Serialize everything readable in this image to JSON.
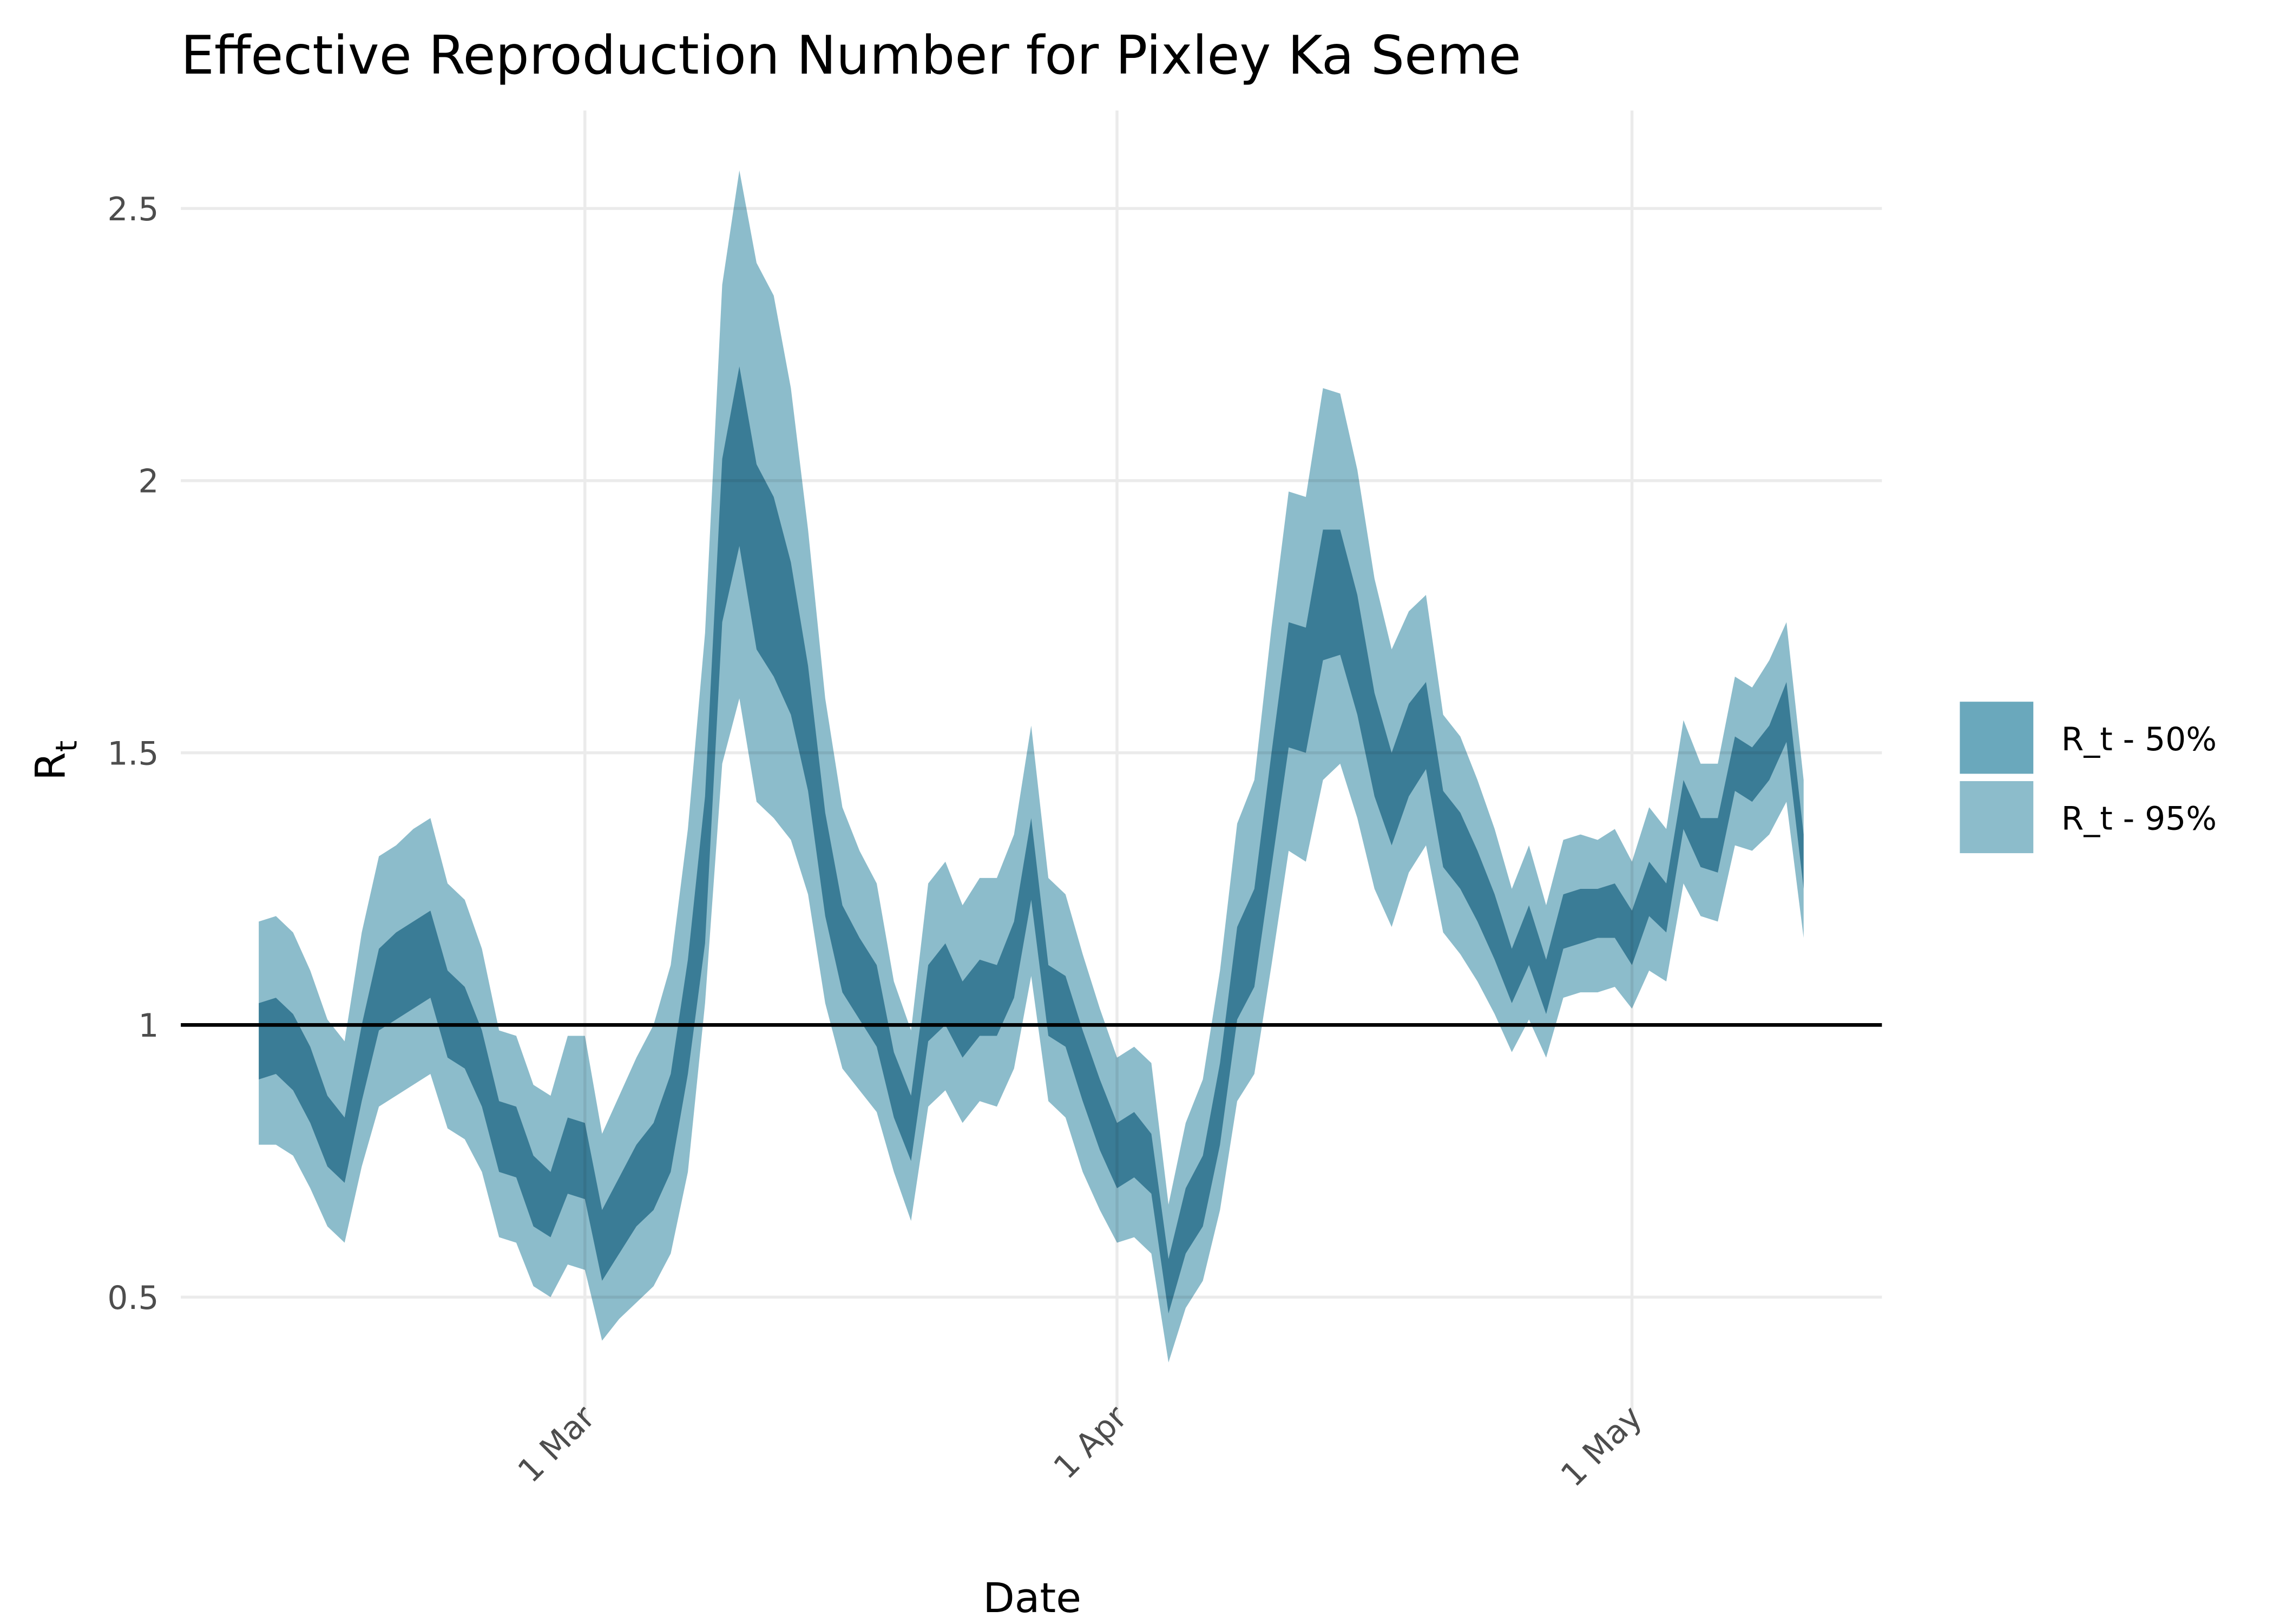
{
  "chart_data": {
    "type": "ribbon",
    "title": "Effective Reproduction Number for Pixley Ka Seme",
    "xlabel": "Date",
    "ylabel": {
      "base": "R",
      "subscript": "t"
    },
    "x": [
      "11 Feb",
      "12 Feb",
      "13 Feb",
      "14 Feb",
      "15 Feb",
      "16 Feb",
      "17 Feb",
      "18 Feb",
      "19 Feb",
      "20 Feb",
      "21 Feb",
      "22 Feb",
      "23 Feb",
      "24 Feb",
      "25 Feb",
      "26 Feb",
      "27 Feb",
      "28 Feb",
      "29 Feb",
      "1 Mar",
      "2 Mar",
      "3 Mar",
      "4 Mar",
      "5 Mar",
      "6 Mar",
      "7 Mar",
      "8 Mar",
      "9 Mar",
      "10 Mar",
      "11 Mar",
      "12 Mar",
      "13 Mar",
      "14 Mar",
      "15 Mar",
      "16 Mar",
      "17 Mar",
      "18 Mar",
      "19 Mar",
      "20 Mar",
      "21 Mar",
      "22 Mar",
      "23 Mar",
      "24 Mar",
      "25 Mar",
      "26 Mar",
      "27 Mar",
      "28 Mar",
      "29 Mar",
      "30 Mar",
      "31 Mar",
      "1 Apr",
      "2 Apr",
      "3 Apr",
      "4 Apr",
      "5 Apr",
      "6 Apr",
      "7 Apr",
      "8 Apr",
      "9 Apr",
      "10 Apr",
      "11 Apr",
      "12 Apr",
      "13 Apr",
      "14 Apr",
      "15 Apr",
      "16 Apr",
      "17 Apr",
      "18 Apr",
      "19 Apr",
      "20 Apr",
      "21 Apr",
      "22 Apr",
      "23 Apr",
      "24 Apr",
      "25 Apr",
      "26 Apr",
      "27 Apr",
      "28 Apr",
      "29 Apr",
      "30 Apr",
      "1 May",
      "2 May",
      "3 May",
      "4 May",
      "5 May",
      "6 May",
      "7 May",
      "8 May",
      "9 May",
      "10 May",
      "11 May"
    ],
    "xticks": [
      "1 Mar",
      "1 Apr",
      "1 May"
    ],
    "ylim": [
      0.27,
      2.68
    ],
    "yticks": [
      0.5,
      1.0,
      1.5,
      2.0,
      2.5
    ],
    "grid": true,
    "hline": 1.0,
    "legend": "right",
    "series": [
      {
        "name": "R_t - 95%",
        "color": "#8cbccb",
        "upper": [
          1.19,
          1.2,
          1.17,
          1.1,
          1.01,
          0.97,
          1.17,
          1.31,
          1.33,
          1.36,
          1.38,
          1.26,
          1.23,
          1.14,
          0.99,
          0.98,
          0.89,
          0.87,
          0.98,
          0.98,
          0.8,
          0.87,
          0.94,
          1.0,
          1.11,
          1.36,
          1.72,
          2.36,
          2.57,
          2.4,
          2.34,
          2.17,
          1.91,
          1.6,
          1.4,
          1.32,
          1.26,
          1.08,
          0.99,
          1.26,
          1.3,
          1.22,
          1.27,
          1.27,
          1.35,
          1.55,
          1.27,
          1.24,
          1.13,
          1.03,
          0.94,
          0.96,
          0.93,
          0.67,
          0.82,
          0.9,
          1.1,
          1.37,
          1.45,
          1.73,
          1.98,
          1.97,
          2.17,
          2.16,
          2.02,
          1.82,
          1.69,
          1.76,
          1.79,
          1.57,
          1.53,
          1.45,
          1.36,
          1.25,
          1.33,
          1.22,
          1.34,
          1.35,
          1.34,
          1.36,
          1.3,
          1.4,
          1.36,
          1.56,
          1.48,
          1.48,
          1.64,
          1.62,
          1.67,
          1.74,
          1.45
        ],
        "lower": [
          0.78,
          0.78,
          0.76,
          0.7,
          0.63,
          0.6,
          0.74,
          0.85,
          0.87,
          0.89,
          0.91,
          0.81,
          0.79,
          0.73,
          0.61,
          0.6,
          0.52,
          0.5,
          0.56,
          0.55,
          0.42,
          0.46,
          0.49,
          0.52,
          0.58,
          0.73,
          1.04,
          1.48,
          1.6,
          1.41,
          1.38,
          1.34,
          1.24,
          1.04,
          0.92,
          0.88,
          0.84,
          0.73,
          0.64,
          0.85,
          0.88,
          0.82,
          0.86,
          0.85,
          0.92,
          1.09,
          0.86,
          0.83,
          0.73,
          0.66,
          0.6,
          0.61,
          0.58,
          0.38,
          0.48,
          0.53,
          0.66,
          0.86,
          0.91,
          1.11,
          1.32,
          1.3,
          1.45,
          1.48,
          1.38,
          1.25,
          1.18,
          1.28,
          1.33,
          1.17,
          1.13,
          1.08,
          1.02,
          0.95,
          1.01,
          0.94,
          1.05,
          1.06,
          1.06,
          1.07,
          1.03,
          1.1,
          1.08,
          1.26,
          1.2,
          1.19,
          1.33,
          1.32,
          1.35,
          1.41,
          1.16
        ]
      },
      {
        "name": "R_t - 50%",
        "color": "#6aa8bc",
        "upper": [
          1.04,
          1.05,
          1.02,
          0.96,
          0.87,
          0.83,
          1.0,
          1.14,
          1.17,
          1.19,
          1.21,
          1.1,
          1.07,
          0.99,
          0.86,
          0.85,
          0.76,
          0.73,
          0.83,
          0.82,
          0.66,
          0.72,
          0.78,
          0.82,
          0.91,
          1.12,
          1.42,
          2.04,
          2.21,
          2.03,
          1.97,
          1.85,
          1.66,
          1.39,
          1.22,
          1.16,
          1.11,
          0.95,
          0.87,
          1.11,
          1.15,
          1.08,
          1.12,
          1.11,
          1.19,
          1.38,
          1.11,
          1.09,
          0.99,
          0.9,
          0.82,
          0.84,
          0.8,
          0.57,
          0.7,
          0.76,
          0.93,
          1.18,
          1.25,
          1.5,
          1.74,
          1.73,
          1.91,
          1.91,
          1.79,
          1.61,
          1.5,
          1.59,
          1.63,
          1.43,
          1.39,
          1.32,
          1.24,
          1.14,
          1.22,
          1.12,
          1.24,
          1.25,
          1.25,
          1.26,
          1.21,
          1.3,
          1.26,
          1.45,
          1.38,
          1.38,
          1.53,
          1.51,
          1.55,
          1.63,
          1.35
        ],
        "lower": [
          0.9,
          0.91,
          0.88,
          0.82,
          0.74,
          0.71,
          0.86,
          0.99,
          1.01,
          1.03,
          1.05,
          0.94,
          0.92,
          0.85,
          0.73,
          0.72,
          0.63,
          0.61,
          0.69,
          0.68,
          0.53,
          0.58,
          0.63,
          0.66,
          0.73,
          0.91,
          1.15,
          1.74,
          1.88,
          1.69,
          1.64,
          1.57,
          1.43,
          1.2,
          1.06,
          1.01,
          0.96,
          0.83,
          0.75,
          0.97,
          1.0,
          0.94,
          0.98,
          0.98,
          1.05,
          1.23,
          0.98,
          0.96,
          0.86,
          0.77,
          0.7,
          0.72,
          0.69,
          0.47,
          0.58,
          0.63,
          0.78,
          1.01,
          1.07,
          1.29,
          1.51,
          1.5,
          1.67,
          1.68,
          1.57,
          1.42,
          1.33,
          1.42,
          1.47,
          1.29,
          1.25,
          1.19,
          1.12,
          1.04,
          1.11,
          1.02,
          1.14,
          1.15,
          1.16,
          1.16,
          1.11,
          1.2,
          1.17,
          1.36,
          1.29,
          1.28,
          1.43,
          1.41,
          1.45,
          1.52,
          1.25
        ]
      }
    ]
  }
}
